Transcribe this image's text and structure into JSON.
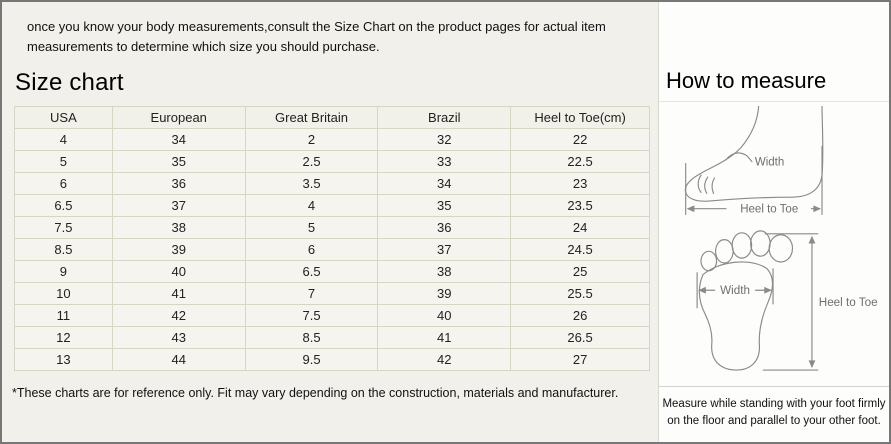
{
  "intro_text": "once you know your body measurements,consult the Size Chart on the product pages for actual item measurements to determine which size you should purchase.",
  "chart_data": {
    "type": "table",
    "title": "Size chart",
    "columns": [
      "USA",
      "European",
      "Great Britain",
      "Brazil",
      "Heel to Toe(cm)"
    ],
    "rows": [
      [
        "4",
        "34",
        "2",
        "32",
        "22"
      ],
      [
        "5",
        "35",
        "2.5",
        "33",
        "22.5"
      ],
      [
        "6",
        "36",
        "3.5",
        "34",
        "23"
      ],
      [
        "6.5",
        "37",
        "4",
        "35",
        "23.5"
      ],
      [
        "7.5",
        "38",
        "5",
        "36",
        "24"
      ],
      [
        "8.5",
        "39",
        "6",
        "37",
        "24.5"
      ],
      [
        "9",
        "40",
        "6.5",
        "38",
        "25"
      ],
      [
        "10",
        "41",
        "7",
        "39",
        "25.5"
      ],
      [
        "11",
        "42",
        "7.5",
        "40",
        "26"
      ],
      [
        "12",
        "43",
        "8.5",
        "41",
        "26.5"
      ],
      [
        "13",
        "44",
        "9.5",
        "42",
        "27"
      ]
    ]
  },
  "footnote": "*These charts are for reference only. Fit may vary depending on the construction, materials and manufacturer.",
  "how_to_measure": {
    "title": "How to measure",
    "side_view": {
      "width_label": "Width",
      "length_label": "Heel to Toe"
    },
    "sole_view": {
      "width_label": "Width",
      "length_label": "Heel to Toe"
    },
    "note": "Measure while standing with your foot firmly on the floor and parallel to your other foot."
  },
  "colors": {
    "page_bg": "#f1f0ea",
    "panel_bg": "#fdfdfb",
    "table_border": "#d8d5c4",
    "cell_bg": "#f5f4ef",
    "header_bg": "#f1f0e9",
    "outer_border": "#777777",
    "text": "#1c1c1c",
    "diagram_line": "#8a8a8a",
    "diagram_text": "#6f6f6f"
  }
}
